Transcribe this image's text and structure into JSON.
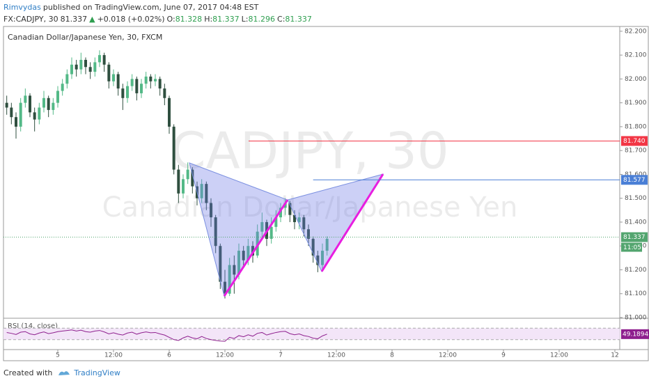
{
  "header": {
    "publisher": "Rimvydas",
    "published": "published on TradingView.com, June 07, 2017 04:48 EST",
    "symbol": "FX:CADJPY, 30",
    "last": 81.337,
    "change": "+0.018 (+0.02%)",
    "ohlc": [
      {
        "label": "O:",
        "value": 81.328
      },
      {
        "label": "H:",
        "value": 81.337
      },
      {
        "label": "L:",
        "value": 81.296
      },
      {
        "label": "C:",
        "value": 81.337
      }
    ]
  },
  "chart_data": {
    "type": "candlestick",
    "title": "Canadian Dollar/Japanese Yen, 30, FXCM",
    "watermark": "CADJPY, 30",
    "watermark_sub": "Canadian Dollar/Japanese Yen",
    "up_color": "#53b987",
    "down_color": "#2f4f3f",
    "x": [
      -11,
      -10,
      -9,
      -8,
      -7,
      -6,
      -5,
      -4,
      -3,
      -2,
      -1,
      0,
      1,
      2,
      3,
      4,
      5,
      6,
      7,
      8,
      9,
      10,
      11,
      12,
      13,
      14,
      15,
      16,
      17,
      18,
      19,
      20,
      21,
      22,
      23,
      24,
      25,
      26,
      27,
      28,
      29,
      30,
      31,
      32,
      33,
      34,
      35,
      36,
      37,
      38,
      39,
      40,
      41,
      42,
      43,
      44,
      45,
      46,
      47,
      48,
      49,
      50,
      51,
      52,
      53,
      54,
      55,
      56,
      57,
      58
    ],
    "open": [
      81.9,
      81.88,
      81.84,
      81.8,
      81.9,
      81.93,
      81.86,
      81.83,
      81.88,
      81.92,
      81.87,
      81.9,
      81.95,
      81.98,
      82.02,
      82.06,
      82.04,
      82.08,
      82.05,
      82.03,
      82.07,
      82.1,
      82.06,
      81.99,
      82.02,
      81.96,
      81.92,
      81.97,
      82.0,
      81.94,
      81.98,
      82.01,
      81.99,
      82.0,
      81.96,
      81.92,
      81.8,
      81.62,
      81.52,
      81.58,
      81.62,
      81.55,
      81.5,
      81.56,
      81.48,
      81.42,
      81.3,
      81.15,
      81.1,
      81.22,
      81.18,
      81.28,
      81.24,
      81.3,
      81.26,
      81.36,
      81.4,
      81.33,
      81.38,
      81.42,
      81.46,
      81.48,
      81.43,
      81.4,
      81.42,
      81.37,
      81.33,
      81.26,
      81.22,
      81.28
    ],
    "high": [
      81.93,
      81.9,
      81.86,
      81.92,
      81.96,
      81.94,
      81.88,
      81.9,
      81.95,
      81.93,
      81.92,
      81.97,
      82.0,
      82.04,
      82.09,
      82.08,
      82.11,
      82.09,
      82.07,
      82.09,
      82.12,
      82.11,
      82.07,
      82.04,
      82.03,
      81.98,
      81.99,
      82.02,
      82.01,
      82.0,
      82.03,
      82.02,
      82.02,
      82.01,
      81.98,
      81.93,
      81.81,
      81.64,
      81.6,
      81.65,
      81.63,
      81.57,
      81.58,
      81.57,
      81.5,
      81.43,
      81.31,
      81.2,
      81.25,
      81.26,
      81.31,
      81.3,
      81.33,
      81.32,
      81.39,
      81.44,
      81.41,
      81.42,
      81.45,
      81.48,
      81.5,
      81.49,
      81.45,
      81.44,
      81.43,
      81.39,
      81.34,
      81.28,
      81.31,
      81.34
    ],
    "low": [
      81.85,
      81.81,
      81.75,
      81.78,
      81.88,
      81.84,
      81.78,
      81.81,
      81.86,
      81.84,
      81.85,
      81.88,
      81.93,
      81.96,
      82.0,
      82.01,
      82.02,
      82.02,
      82.0,
      82.01,
      82.05,
      82.03,
      81.96,
      81.97,
      81.93,
      81.87,
      81.9,
      81.95,
      81.91,
      81.92,
      81.96,
      81.96,
      81.97,
      81.93,
      81.89,
      81.77,
      81.6,
      81.48,
      81.5,
      81.56,
      81.52,
      81.47,
      81.48,
      81.45,
      81.38,
      81.27,
      81.12,
      81.08,
      81.09,
      81.1,
      81.16,
      81.21,
      81.22,
      81.23,
      81.25,
      81.33,
      81.3,
      81.31,
      81.36,
      81.4,
      81.43,
      81.4,
      81.37,
      81.37,
      81.34,
      81.3,
      81.23,
      81.19,
      81.2,
      81.26
    ],
    "close": [
      81.88,
      81.84,
      81.8,
      81.9,
      81.93,
      81.86,
      81.83,
      81.88,
      81.92,
      81.87,
      81.9,
      81.95,
      81.98,
      82.02,
      82.06,
      82.04,
      82.08,
      82.05,
      82.03,
      82.07,
      82.1,
      82.06,
      81.99,
      82.02,
      81.96,
      81.92,
      81.97,
      82.0,
      81.94,
      81.98,
      82.01,
      81.99,
      82.0,
      81.96,
      81.92,
      81.8,
      81.62,
      81.52,
      81.58,
      81.62,
      81.55,
      81.5,
      81.56,
      81.48,
      81.42,
      81.3,
      81.15,
      81.1,
      81.22,
      81.18,
      81.28,
      81.24,
      81.3,
      81.26,
      81.36,
      81.4,
      81.33,
      81.38,
      81.42,
      81.46,
      81.48,
      81.43,
      81.4,
      81.42,
      81.37,
      81.33,
      81.26,
      81.22,
      81.28,
      81.33
    ],
    "xlim": [
      -11.7,
      121.05
    ],
    "xticks": [
      {
        "value": 0,
        "label": "5"
      },
      {
        "value": 12,
        "label": "12:00"
      },
      {
        "value": 24,
        "label": "6"
      },
      {
        "value": 36,
        "label": "12:00"
      },
      {
        "value": 48,
        "label": "7"
      },
      {
        "value": 60,
        "label": "12:00"
      },
      {
        "value": 72,
        "label": "8"
      },
      {
        "value": 84,
        "label": "12:00"
      },
      {
        "value": 96,
        "label": "9"
      },
      {
        "value": 108,
        "label": "12:00"
      },
      {
        "value": 120,
        "label": "12"
      }
    ],
    "ylim": [
      81.0,
      82.22
    ],
    "yticks": [
      {
        "value": 81.0,
        "label": "81.000"
      },
      {
        "value": 81.1,
        "label": "81.100"
      },
      {
        "value": 81.2,
        "label": "81.200"
      },
      {
        "value": 81.3,
        "label": "81.300"
      },
      {
        "value": 81.4,
        "label": "81.400"
      },
      {
        "value": 81.5,
        "label": "81.500"
      },
      {
        "value": 81.6,
        "label": "81.600"
      },
      {
        "value": 81.7,
        "label": "81.700"
      },
      {
        "value": 81.8,
        "label": "81.800"
      },
      {
        "value": 81.9,
        "label": "81.900"
      },
      {
        "value": 82.0,
        "label": "82.000"
      },
      {
        "value": 82.1,
        "label": "82.100"
      },
      {
        "value": 82.2,
        "label": "82.200"
      }
    ],
    "levels": [
      {
        "value": 81.74,
        "label": "81.740",
        "color": "#f23645",
        "start": 41.1
      },
      {
        "value": 81.577,
        "label": "81.577",
        "color": "#4a7fd6",
        "start": 55
      }
    ],
    "last_price": {
      "value": 81.337,
      "label": "81.337",
      "color": "#53a56f"
    },
    "countdown": "11:05",
    "pattern": {
      "x": [
        28.35,
        35.85,
        49.5,
        56.85,
        70.05
      ],
      "y": [
        81.648,
        81.09,
        81.493,
        81.193,
        81.601
      ],
      "fill": "rgba(110,120,230,0.35)",
      "edge": "#7a8fe0",
      "leg_color": "#e81ee0"
    },
    "rsi": {
      "title": "RSI (14, close)",
      "color": "#8e1f8e",
      "ylim": [
        0,
        100
      ],
      "bands": [
        30,
        70
      ],
      "last": {
        "value": 49.1894,
        "label": "49.1894"
      },
      "values": [
        55,
        52,
        48,
        56,
        58,
        50,
        47,
        53,
        57,
        51,
        54,
        58,
        60,
        62,
        64,
        60,
        63,
        58,
        56,
        60,
        62,
        57,
        50,
        54,
        49,
        46,
        53,
        56,
        49,
        54,
        57,
        54,
        55,
        50,
        46,
        38,
        30,
        27,
        36,
        42,
        36,
        33,
        41,
        34,
        30,
        27,
        25,
        24,
        38,
        34,
        44,
        40,
        47,
        42,
        52,
        55,
        46,
        51,
        55,
        58,
        59,
        51,
        47,
        50,
        44,
        41,
        35,
        33,
        43,
        49.1894
      ]
    }
  },
  "footer": {
    "created": "Created with",
    "brand": "TradingView"
  }
}
